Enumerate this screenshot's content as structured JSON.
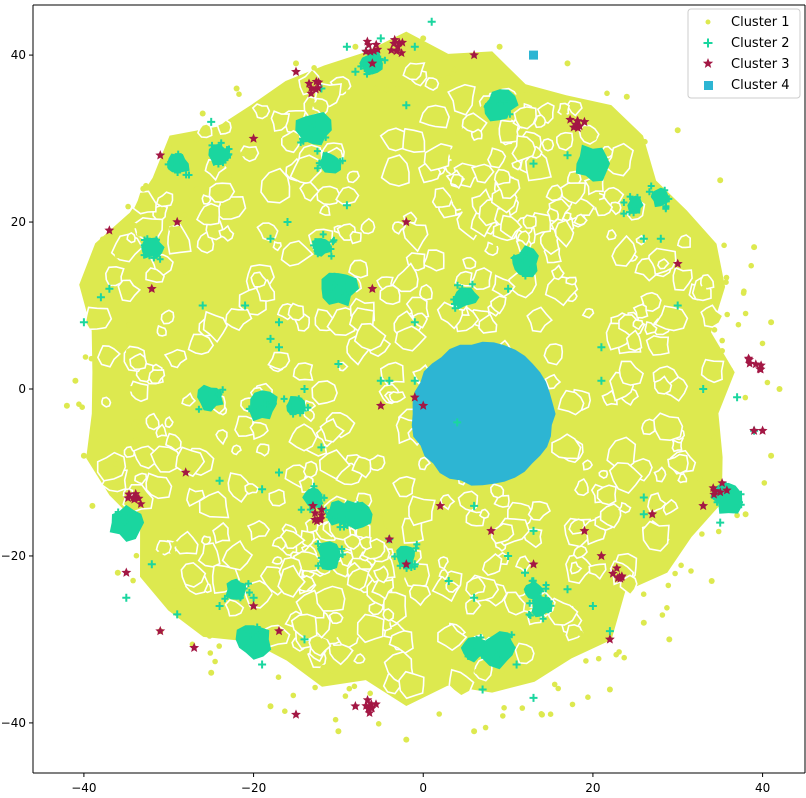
{
  "chart_data": {
    "type": "scatter",
    "title": "",
    "xlabel": "",
    "ylabel": "",
    "xlim": [
      -46,
      45
    ],
    "ylim": [
      -46,
      46
    ],
    "xticks": [
      -40,
      -20,
      0,
      20,
      40
    ],
    "yticks": [
      -40,
      -20,
      0,
      20,
      40
    ],
    "xtick_labels": [
      "−40",
      "−20",
      "0",
      "20",
      "40"
    ],
    "ytick_labels": [
      "−40",
      "−20",
      "0",
      "20",
      "40"
    ],
    "grid": false,
    "legend_placement": "top-right",
    "series": [
      {
        "name": "Cluster 1",
        "marker": "circle",
        "color": "#dde94f",
        "regions": [
          {
            "x": -2,
            "y": 2,
            "r": 38
          },
          {
            "x": -10,
            "y": -22,
            "r": 8
          },
          {
            "x": 12,
            "y": 26,
            "r": 9
          }
        ],
        "points": [
          [
            -42,
            -2
          ],
          [
            -41,
            1
          ],
          [
            -40,
            -8
          ],
          [
            -38,
            8
          ],
          [
            -36,
            16
          ],
          [
            -33,
            24
          ],
          [
            -30,
            29
          ],
          [
            -26,
            33
          ],
          [
            -22,
            36
          ],
          [
            -15,
            39
          ],
          [
            -8,
            41
          ],
          [
            0,
            42
          ],
          [
            9,
            41
          ],
          [
            17,
            39
          ],
          [
            24,
            35
          ],
          [
            30,
            31
          ],
          [
            35,
            25
          ],
          [
            39,
            17
          ],
          [
            41,
            8
          ],
          [
            42,
            0
          ],
          [
            41,
            -8
          ],
          [
            38,
            -15
          ],
          [
            34,
            -23
          ],
          [
            29,
            -30
          ],
          [
            22,
            -36
          ],
          [
            14,
            -39
          ],
          [
            6,
            -41
          ],
          [
            -2,
            -42
          ],
          [
            -10,
            -41
          ],
          [
            -18,
            -38
          ],
          [
            -25,
            -34
          ],
          [
            -31,
            -29
          ],
          [
            -36,
            -22
          ],
          [
            -39,
            -14
          ],
          [
            -28,
            14
          ],
          [
            -20,
            -30
          ],
          [
            26,
            -28
          ],
          [
            33,
            12
          ]
        ]
      },
      {
        "name": "Cluster 2",
        "marker": "plus",
        "color": "#1ad69f",
        "clusters": [
          [
            -6,
            39
          ],
          [
            9,
            34
          ],
          [
            -13,
            31
          ],
          [
            -24,
            28
          ],
          [
            -29,
            27
          ],
          [
            -11,
            27
          ],
          [
            20,
            27
          ],
          [
            28,
            23
          ],
          [
            25,
            22
          ],
          [
            -12,
            17
          ],
          [
            -32,
            17
          ],
          [
            -10,
            12
          ],
          [
            -25,
            -1
          ],
          [
            -19,
            -2
          ],
          [
            -15,
            -2
          ],
          [
            -13,
            -13
          ],
          [
            -10,
            -15
          ],
          [
            -11,
            -20
          ],
          [
            -8,
            -15
          ],
          [
            14,
            -26
          ],
          [
            13,
            -24
          ],
          [
            6,
            -31
          ],
          [
            9,
            -31
          ],
          [
            -20,
            -30
          ],
          [
            -22,
            -24
          ],
          [
            36,
            -13
          ],
          [
            -35,
            -16
          ],
          [
            -2,
            -20
          ],
          [
            12,
            15
          ],
          [
            5,
            11
          ]
        ],
        "points": [
          [
            -9,
            41
          ],
          [
            -5,
            42
          ],
          [
            -1,
            41
          ],
          [
            -8,
            38
          ],
          [
            -12,
            36
          ],
          [
            -25,
            32
          ],
          [
            -16,
            20
          ],
          [
            -18,
            18
          ],
          [
            -9,
            22
          ],
          [
            -26,
            10
          ],
          [
            -38,
            11
          ],
          [
            -37,
            12
          ],
          [
            -40,
            8
          ],
          [
            -17,
            8
          ],
          [
            -18,
            6
          ],
          [
            -17,
            5
          ],
          [
            -10,
            3
          ],
          [
            -5,
            1
          ],
          [
            -1,
            8
          ],
          [
            -14,
            0
          ],
          [
            -12,
            -7
          ],
          [
            -17,
            -10
          ],
          [
            -24,
            -11
          ],
          [
            -21,
            10
          ],
          [
            10,
            12
          ],
          [
            -12,
            -13
          ],
          [
            -10,
            -20
          ],
          [
            -4,
            -18
          ],
          [
            -1,
            -21
          ],
          [
            3,
            -23
          ],
          [
            6,
            -25
          ],
          [
            10,
            -20
          ],
          [
            12,
            -22
          ],
          [
            13,
            -17
          ],
          [
            17,
            -24
          ],
          [
            20,
            -26
          ],
          [
            22,
            -29
          ],
          [
            11,
            -33
          ],
          [
            13,
            -37
          ],
          [
            7,
            -36
          ],
          [
            -14,
            -30
          ],
          [
            -19,
            -33
          ],
          [
            -24,
            -26
          ],
          [
            -20,
            -25
          ],
          [
            -29,
            -27
          ],
          [
            -32,
            -21
          ],
          [
            -35,
            -25
          ],
          [
            -19,
            -12
          ],
          [
            21,
            5
          ],
          [
            21,
            1
          ],
          [
            26,
            -13
          ],
          [
            26,
            -15
          ],
          [
            30,
            10
          ],
          [
            33,
            0
          ],
          [
            37,
            -1
          ],
          [
            39,
            -5
          ],
          [
            35,
            -16
          ],
          [
            4,
            -4
          ],
          [
            17,
            28
          ],
          [
            13,
            27
          ],
          [
            -1,
            1
          ],
          [
            -4,
            1
          ],
          [
            -8,
            -16
          ],
          [
            1,
            44
          ],
          [
            -2,
            34
          ],
          [
            6,
            -14
          ],
          [
            26,
            18
          ],
          [
            28,
            18
          ]
        ]
      },
      {
        "name": "Cluster 3",
        "marker": "star",
        "color": "#a31744",
        "clusters": [
          [
            -3,
            41
          ],
          [
            -13,
            36
          ],
          [
            -34,
            -13
          ],
          [
            39,
            3
          ],
          [
            35,
            -12
          ],
          [
            23,
            -22
          ],
          [
            -12,
            -15
          ],
          [
            -6,
            -38
          ],
          [
            -6,
            41
          ],
          [
            18,
            32
          ]
        ],
        "points": [
          [
            -15,
            38
          ],
          [
            -3,
            41
          ],
          [
            6,
            40
          ],
          [
            19,
            32
          ],
          [
            -31,
            28
          ],
          [
            -20,
            30
          ],
          [
            -37,
            19
          ],
          [
            -29,
            20
          ],
          [
            -32,
            12
          ],
          [
            -6,
            12
          ],
          [
            -6,
            39
          ],
          [
            -2,
            20
          ],
          [
            30,
            15
          ],
          [
            39,
            -5
          ],
          [
            0,
            -2
          ],
          [
            -5,
            -2
          ],
          [
            -28,
            -10
          ],
          [
            -4,
            -18
          ],
          [
            -2,
            -21
          ],
          [
            8,
            -17
          ],
          [
            13,
            -21
          ],
          [
            19,
            -17
          ],
          [
            21,
            -20
          ],
          [
            27,
            -15
          ],
          [
            33,
            -14
          ],
          [
            2,
            -14
          ],
          [
            -17,
            -29
          ],
          [
            -20,
            -26
          ],
          [
            -31,
            -29
          ],
          [
            -27,
            -31
          ],
          [
            -35,
            -22
          ],
          [
            -15,
            -39
          ],
          [
            -8,
            -38
          ],
          [
            -13,
            -14
          ],
          [
            22,
            -30
          ],
          [
            40,
            -5
          ],
          [
            -1,
            -1
          ]
        ]
      },
      {
        "name": "Cluster 4",
        "marker": "square",
        "color": "#2db5d3",
        "regions": [
          {
            "x": 7,
            "y": -3,
            "r": 8.4
          }
        ],
        "points": [
          [
            13,
            40
          ]
        ]
      }
    ]
  }
}
